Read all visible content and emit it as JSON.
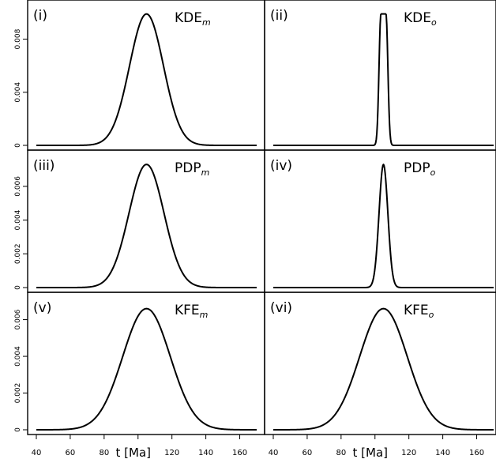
{
  "chart_data": [
    {
      "type": "line",
      "tag": "(i)",
      "name": "KDE",
      "sub": "m",
      "peak_x": 105,
      "sigma": 10,
      "plateau": 0,
      "ymax": 0.0099,
      "ylim": [
        0,
        0.01
      ],
      "yticks": [
        0,
        0.004,
        0.008
      ],
      "ytick_labels": [
        "0",
        "0.004",
        "0.008"
      ]
    },
    {
      "type": "line",
      "tag": "(ii)",
      "name": "KDE",
      "sub": "o",
      "peak_x": 105,
      "sigma": 1.1,
      "plateau": 3,
      "ymax": 0.0099,
      "ylim": [
        0,
        0.01
      ],
      "yticks": [],
      "ytick_labels": []
    },
    {
      "type": "line",
      "tag": "(iii)",
      "name": "PDP",
      "sub": "m",
      "peak_x": 105,
      "sigma": 10.3,
      "plateau": 0,
      "ymax": 0.0073,
      "ylim": [
        0,
        0.0074
      ],
      "yticks": [
        0,
        0.002,
        0.004,
        0.006
      ],
      "ytick_labels": [
        "0",
        "0.002",
        "0.004",
        "0.006"
      ]
    },
    {
      "type": "line",
      "tag": "(iv)",
      "name": "PDP",
      "sub": "o",
      "peak_x": 105,
      "sigma": 2.6,
      "plateau": 0,
      "ymax": 0.0073,
      "ylim": [
        0,
        0.0074
      ],
      "yticks": [],
      "ytick_labels": []
    },
    {
      "type": "line",
      "tag": "(v)",
      "name": "KFE",
      "sub": "m",
      "peak_x": 105,
      "sigma": 14,
      "plateau": 0,
      "ymax": 0.0066,
      "ylim": [
        0,
        0.0068
      ],
      "yticks": [
        0,
        0.002,
        0.004,
        0.006
      ],
      "ytick_labels": [
        "0",
        "0.002",
        "0.004",
        "0.006"
      ]
    },
    {
      "type": "line",
      "tag": "(vi)",
      "name": "KFE",
      "sub": "o",
      "peak_x": 105,
      "sigma": 14,
      "plateau": 0,
      "ymax": 0.0066,
      "ylim": [
        0,
        0.0068
      ],
      "yticks": [],
      "ytick_labels": []
    }
  ],
  "x_axis": {
    "xlim": [
      40,
      170
    ],
    "ticks": [
      40,
      60,
      80,
      100,
      120,
      140,
      160
    ],
    "tick_labels": [
      "40",
      "60",
      "80",
      "",
      "120",
      "140",
      "160"
    ],
    "label": "t [Ma]"
  },
  "grid": false
}
